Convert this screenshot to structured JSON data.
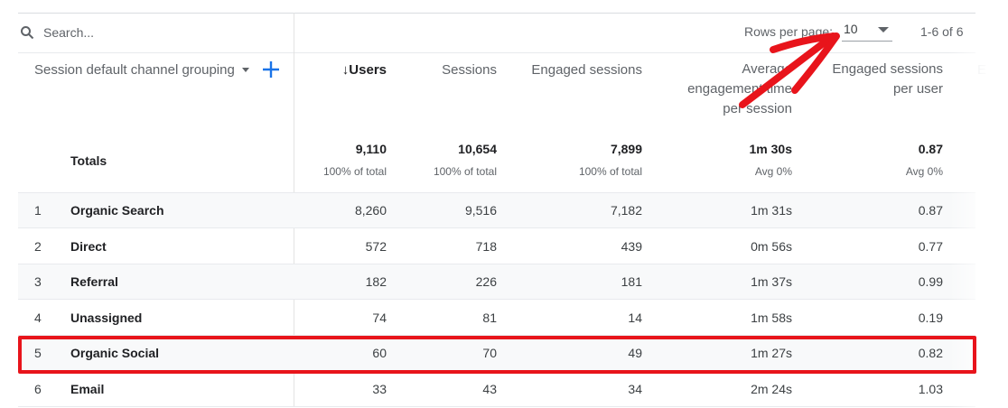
{
  "search": {
    "placeholder": "Search...",
    "icon": "search-icon"
  },
  "pagination": {
    "rows_per_page_label": "Rows per page:",
    "rows_per_page_value": "10",
    "range": "1-6 of 6"
  },
  "dimension_header": "Session default channel grouping",
  "columns": [
    {
      "label": "↓Users",
      "sorted": "descending"
    },
    {
      "label": "Sessions"
    },
    {
      "label": "Engaged sessions"
    },
    {
      "label": "Average engagement time per session"
    },
    {
      "label": "Engaged sessions per user"
    },
    {
      "label": "E"
    }
  ],
  "totals": {
    "label": "Totals",
    "values": [
      "9,110",
      "10,654",
      "7,899",
      "1m 30s",
      "0.87"
    ],
    "subs": [
      "100% of total",
      "100% of total",
      "100% of total",
      "Avg 0%",
      "Avg 0%"
    ]
  },
  "rows": [
    {
      "n": "1",
      "name": "Organic Search",
      "values": [
        "8,260",
        "9,516",
        "7,182",
        "1m 31s",
        "0.87"
      ]
    },
    {
      "n": "2",
      "name": "Direct",
      "values": [
        "572",
        "718",
        "439",
        "0m 56s",
        "0.77"
      ]
    },
    {
      "n": "3",
      "name": "Referral",
      "values": [
        "182",
        "226",
        "181",
        "1m 37s",
        "0.99"
      ]
    },
    {
      "n": "4",
      "name": "Unassigned",
      "values": [
        "74",
        "81",
        "14",
        "1m 58s",
        "0.19"
      ]
    },
    {
      "n": "5",
      "name": "Organic Social",
      "values": [
        "60",
        "70",
        "49",
        "1m 27s",
        "0.82"
      ]
    },
    {
      "n": "6",
      "name": "Email",
      "values": [
        "33",
        "43",
        "34",
        "2m 24s",
        "1.03"
      ]
    }
  ],
  "colors": {
    "annotation": "#e8141b",
    "accent": "#1a73e8"
  }
}
